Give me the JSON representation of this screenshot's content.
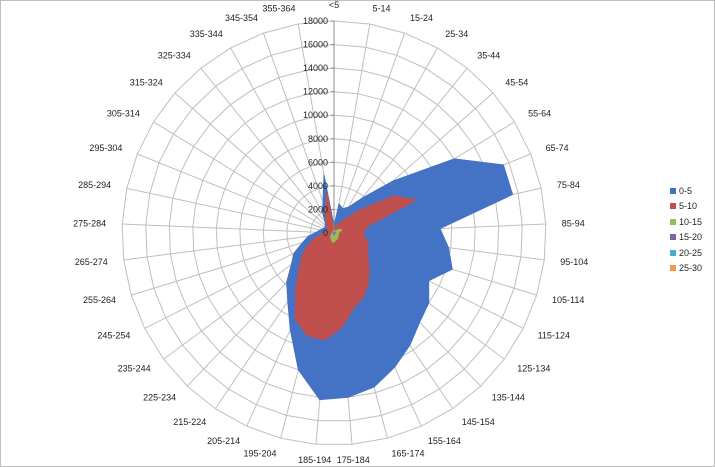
{
  "chart_data": {
    "type": "radar",
    "title": "",
    "categories": [
      "<5",
      "5-14",
      "15-24",
      "25-34",
      "35-44",
      "45-54",
      "55-64",
      "65-74",
      "75-84",
      "85-94",
      "95-104",
      "105-114",
      "115-124",
      "125-134",
      "135-144",
      "145-154",
      "155-164",
      "165-174",
      "175-184",
      "185-194",
      "195-204",
      "205-214",
      "215-224",
      "225-234",
      "235-244",
      "245-254",
      "255-264",
      "265-274",
      "275-284",
      "285-294",
      "295-304",
      "305-314",
      "315-324",
      "325-334",
      "335-344",
      "345-354",
      "355-364"
    ],
    "r_ticks": [
      0,
      2000,
      4000,
      6000,
      8000,
      10000,
      12000,
      14000,
      16000,
      18000
    ],
    "r_range": [
      0,
      18000
    ],
    "grid": true,
    "legend_position": "right",
    "series": [
      {
        "name": "0-5",
        "color": "#4472C4",
        "values": [
          600,
          2500,
          2200,
          2500,
          3800,
          6700,
          12000,
          15500,
          15500,
          9000,
          9800,
          10500,
          9000,
          10000,
          10500,
          11500,
          12500,
          13500,
          14000,
          14200,
          12000,
          9000,
          7000,
          5800,
          4500,
          3800,
          2800,
          2200,
          1500,
          1200,
          1000,
          900,
          1000,
          1200,
          2000,
          2800,
          5000
        ]
      },
      {
        "name": "5-10",
        "color": "#C0504D",
        "values": [
          300,
          600,
          700,
          900,
          1500,
          3000,
          6000,
          7500,
          3000,
          2500,
          2600,
          3000,
          3200,
          3600,
          4300,
          5200,
          6000,
          6600,
          8000,
          9100,
          9000,
          8000,
          5800,
          4300,
          3400,
          2600,
          1800,
          1200,
          800,
          700,
          600,
          700,
          800,
          1000,
          1500,
          2200,
          3500
        ]
      },
      {
        "name": "10-15",
        "color": "#9BBB59",
        "values": [
          50,
          100,
          150,
          200,
          300,
          400,
          600,
          700,
          500,
          400,
          400,
          400,
          400,
          400,
          500,
          500,
          600,
          600,
          700,
          800,
          700,
          600,
          500,
          400,
          300,
          250,
          200,
          150,
          100,
          100,
          100,
          100,
          100,
          100,
          150,
          200,
          300
        ]
      },
      {
        "name": "15-20",
        "color": "#8064A2",
        "values": [
          10,
          20,
          30,
          40,
          60,
          80,
          120,
          150,
          100,
          80,
          80,
          80,
          80,
          80,
          100,
          100,
          120,
          120,
          140,
          160,
          140,
          120,
          100,
          80,
          60,
          50,
          40,
          30,
          20,
          20,
          20,
          20,
          20,
          20,
          30,
          40,
          60
        ]
      },
      {
        "name": "20-25",
        "color": "#4BACC6",
        "values": [
          2,
          5,
          6,
          8,
          12,
          16,
          24,
          30,
          20,
          16,
          16,
          16,
          16,
          16,
          20,
          20,
          24,
          24,
          28,
          32,
          28,
          24,
          20,
          16,
          12,
          10,
          8,
          6,
          4,
          4,
          4,
          4,
          4,
          4,
          6,
          8,
          12
        ]
      },
      {
        "name": "25-30",
        "color": "#F79646",
        "values": [
          1,
          1,
          1,
          2,
          2,
          3,
          5,
          6,
          4,
          3,
          3,
          3,
          3,
          3,
          4,
          4,
          5,
          5,
          6,
          6,
          6,
          5,
          4,
          3,
          2,
          2,
          2,
          1,
          1,
          1,
          1,
          1,
          1,
          1,
          1,
          2,
          2
        ]
      }
    ]
  }
}
